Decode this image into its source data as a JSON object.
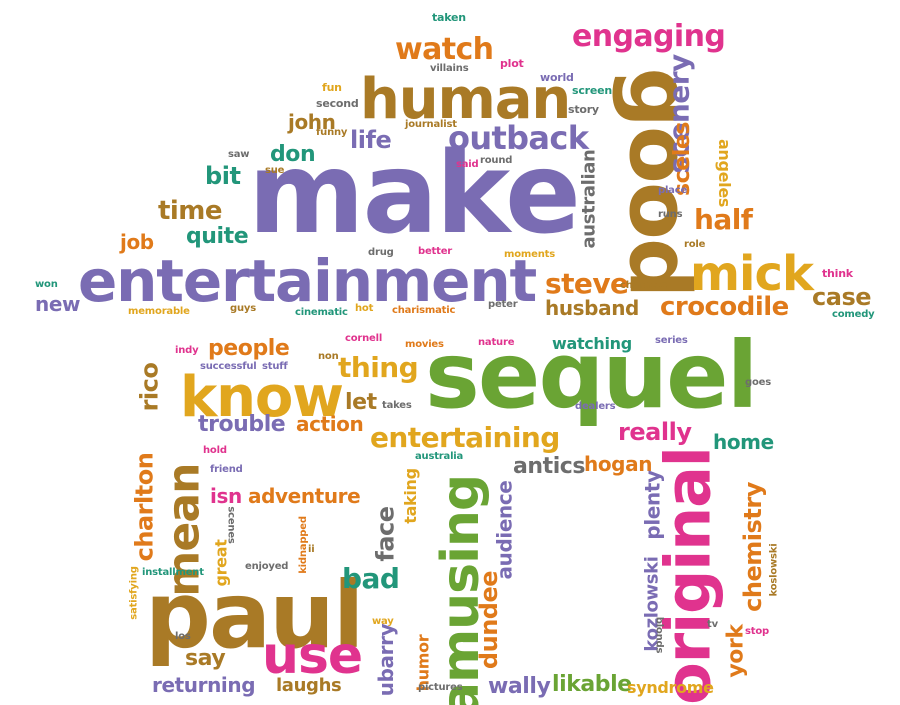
{
  "palette": {
    "purple": "#7a6cb3",
    "orange": "#e07a1a",
    "green": "#6aa434",
    "magenta": "#e0338e",
    "gold": "#e1a61e",
    "brown": "#a97a26",
    "teal": "#22967a",
    "gray": "#6d6d6d"
  },
  "words": [
    {
      "text": "make",
      "color": "purple"
    },
    {
      "text": "sequel",
      "color": "green"
    },
    {
      "text": "paul",
      "color": "brown"
    },
    {
      "text": "entertainment",
      "color": "purple"
    },
    {
      "text": "good",
      "color": "brown"
    },
    {
      "text": "human",
      "color": "brown"
    },
    {
      "text": "know",
      "color": "gold"
    },
    {
      "text": "mick",
      "color": "gold"
    },
    {
      "text": "original",
      "color": "magenta"
    },
    {
      "text": "amusing",
      "color": "green"
    },
    {
      "text": "use",
      "color": "magenta"
    },
    {
      "text": "mean",
      "color": "brown"
    },
    {
      "text": "outback",
      "color": "purple"
    },
    {
      "text": "entertaining",
      "color": "gold"
    },
    {
      "text": "engaging",
      "color": "magenta"
    },
    {
      "text": "watch",
      "color": "orange"
    },
    {
      "text": "scenery",
      "color": "purple"
    },
    {
      "text": "crocodile",
      "color": "orange"
    },
    {
      "text": "steve",
      "color": "orange"
    },
    {
      "text": "husband",
      "color": "brown"
    },
    {
      "text": "half",
      "color": "orange"
    },
    {
      "text": "case",
      "color": "brown"
    },
    {
      "text": "thing",
      "color": "gold"
    },
    {
      "text": "people",
      "color": "orange"
    },
    {
      "text": "really",
      "color": "magenta"
    },
    {
      "text": "trouble",
      "color": "purple"
    },
    {
      "text": "action",
      "color": "orange"
    },
    {
      "text": "let",
      "color": "brown"
    },
    {
      "text": "home",
      "color": "teal"
    },
    {
      "text": "antics",
      "color": "gray"
    },
    {
      "text": "hogan",
      "color": "orange"
    },
    {
      "text": "chemistry",
      "color": "orange"
    },
    {
      "text": "adventure",
      "color": "orange"
    },
    {
      "text": "isn",
      "color": "magenta"
    },
    {
      "text": "charlton",
      "color": "orange"
    },
    {
      "text": "rico",
      "color": "brown"
    },
    {
      "text": "bad",
      "color": "teal"
    },
    {
      "text": "face",
      "color": "gray"
    },
    {
      "text": "dundee",
      "color": "orange"
    },
    {
      "text": "audience",
      "color": "purple"
    },
    {
      "text": "say",
      "color": "brown"
    },
    {
      "text": "returning",
      "color": "purple"
    },
    {
      "text": "laughs",
      "color": "brown"
    },
    {
      "text": "wally",
      "color": "purple"
    },
    {
      "text": "likable",
      "color": "green"
    },
    {
      "text": "syndrome",
      "color": "gold"
    },
    {
      "text": "york",
      "color": "orange"
    },
    {
      "text": "kozlowski",
      "color": "purple"
    },
    {
      "text": "ubarry",
      "color": "purple"
    },
    {
      "text": "humor",
      "color": "orange"
    },
    {
      "text": "plenty",
      "color": "purple"
    },
    {
      "text": "taking",
      "color": "gold"
    },
    {
      "text": "time",
      "color": "brown"
    },
    {
      "text": "quite",
      "color": "teal"
    },
    {
      "text": "bit",
      "color": "teal"
    },
    {
      "text": "job",
      "color": "orange"
    },
    {
      "text": "new",
      "color": "purple"
    },
    {
      "text": "don",
      "color": "teal"
    },
    {
      "text": "john",
      "color": "brown"
    },
    {
      "text": "life",
      "color": "purple"
    },
    {
      "text": "australian",
      "color": "gray"
    },
    {
      "text": "sceles",
      "color": "orange"
    },
    {
      "text": "angeles",
      "color": "gold"
    },
    {
      "text": "great",
      "color": "gold"
    },
    {
      "text": "watching",
      "color": "teal"
    },
    {
      "text": "taken",
      "color": "teal"
    },
    {
      "text": "villains",
      "color": "gray"
    },
    {
      "text": "plot",
      "color": "magenta"
    },
    {
      "text": "world",
      "color": "purple"
    },
    {
      "text": "screen",
      "color": "teal"
    },
    {
      "text": "story",
      "color": "gray"
    },
    {
      "text": "fun",
      "color": "gold"
    },
    {
      "text": "second",
      "color": "gray"
    },
    {
      "text": "funny",
      "color": "brown"
    },
    {
      "text": "journalist",
      "color": "brown"
    },
    {
      "text": "said",
      "color": "magenta"
    },
    {
      "text": "round",
      "color": "gray"
    },
    {
      "text": "saw",
      "color": "gray"
    },
    {
      "text": "sue",
      "color": "brown"
    },
    {
      "text": "drug",
      "color": "gray"
    },
    {
      "text": "better",
      "color": "magenta"
    },
    {
      "text": "moments",
      "color": "gold"
    },
    {
      "text": "character",
      "color": "brown"
    },
    {
      "text": "place",
      "color": "purple"
    },
    {
      "text": "runs",
      "color": "gray"
    },
    {
      "text": "role",
      "color": "brown"
    },
    {
      "text": "think",
      "color": "magenta"
    },
    {
      "text": "comedy",
      "color": "teal"
    },
    {
      "text": "won",
      "color": "teal"
    },
    {
      "text": "memorable",
      "color": "gold"
    },
    {
      "text": "guys",
      "color": "brown"
    },
    {
      "text": "cinematic",
      "color": "teal"
    },
    {
      "text": "hot",
      "color": "gold"
    },
    {
      "text": "charismatic",
      "color": "orange"
    },
    {
      "text": "peter",
      "color": "gray"
    },
    {
      "text": "indy",
      "color": "magenta"
    },
    {
      "text": "cornell",
      "color": "magenta"
    },
    {
      "text": "movies",
      "color": "orange"
    },
    {
      "text": "nature",
      "color": "magenta"
    },
    {
      "text": "series",
      "color": "purple"
    },
    {
      "text": "non",
      "color": "brown"
    },
    {
      "text": "successful",
      "color": "purple"
    },
    {
      "text": "stuff",
      "color": "purple"
    },
    {
      "text": "takes",
      "color": "gray"
    },
    {
      "text": "goes",
      "color": "gray"
    },
    {
      "text": "dealers",
      "color": "purple"
    },
    {
      "text": "australia",
      "color": "teal"
    },
    {
      "text": "hold",
      "color": "magenta"
    },
    {
      "text": "friend",
      "color": "purple"
    },
    {
      "text": "scenes",
      "color": "gray"
    },
    {
      "text": "kidnapped",
      "color": "orange"
    },
    {
      "text": "ii",
      "color": "brown"
    },
    {
      "text": "enjoyed",
      "color": "gray"
    },
    {
      "text": "installment",
      "color": "teal"
    },
    {
      "text": "satisfying",
      "color": "gold"
    },
    {
      "text": "way",
      "color": "gold"
    },
    {
      "text": "los",
      "color": "gray"
    },
    {
      "text": "pictures",
      "color": "gray"
    },
    {
      "text": "tv",
      "color": "gray"
    },
    {
      "text": "blonds",
      "color": "gray"
    },
    {
      "text": "stop",
      "color": "magenta"
    },
    {
      "text": "koslowski",
      "color": "brown"
    }
  ]
}
